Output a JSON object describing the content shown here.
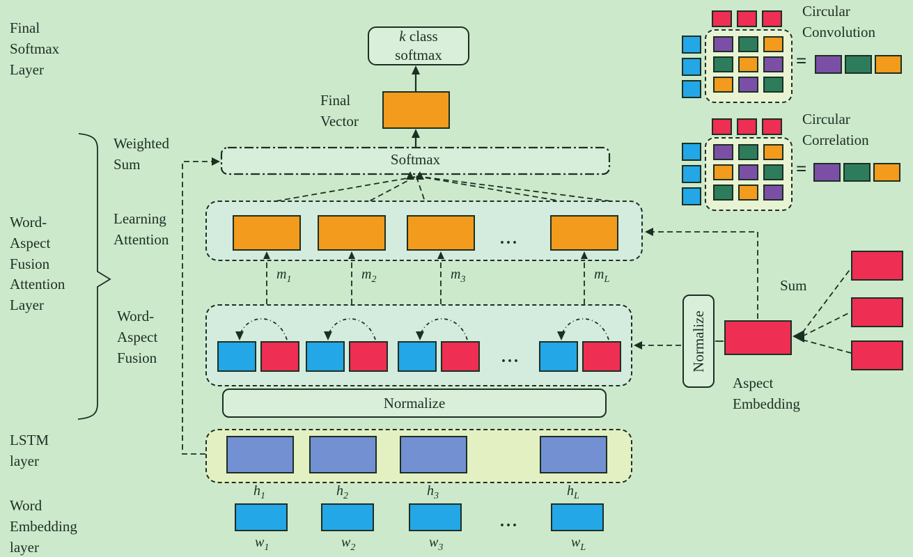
{
  "colors": {
    "background": "#cde9cc",
    "line": "#1c2f22",
    "orange": "#f29b1c",
    "red": "#ee2e52",
    "blue": "#23a7e6",
    "periwinkle": "#7390d2",
    "purple": "#7c4fa7",
    "green": "#2d7d5c",
    "attention_fill": "#d4ecdd",
    "lstm_fill": "#e3f0c2",
    "panel_fill": "#e7f3d2",
    "box_fill": "#d9efda"
  },
  "side_labels": {
    "final_softmax_layer": "Final\nSoftmax\nLayer",
    "word_aspect_fusion_attention_layer": "Word-\nAspect\nFusion\nAttention\nLayer",
    "weighted_sum": "Weighted\nSum",
    "learning_attention": "Learning\nAttention",
    "word_aspect_fusion": "Word-\nAspect\nFusion",
    "lstm_layer": "LSTM\nlayer",
    "word_embedding_layer": "Word\nEmbedding\nlayer"
  },
  "nodes": {
    "k_class": {
      "k": "k",
      "rest": " class",
      "line2": "softmax"
    },
    "final_vector": "Final\nVector",
    "softmax": "Softmax",
    "normalize_horizontal": "Normalize",
    "normalize_vertical": "Normalize",
    "aspect_embedding": "Aspect\nEmbedding",
    "sum": "Sum"
  },
  "seq": {
    "m": [
      {
        "base": "m",
        "sub": "1"
      },
      {
        "base": "m",
        "sub": "2"
      },
      {
        "base": "m",
        "sub": "3"
      },
      {
        "base": "m",
        "sub": "L"
      }
    ],
    "h": [
      {
        "base": "h",
        "sub": "1"
      },
      {
        "base": "h",
        "sub": "2"
      },
      {
        "base": "h",
        "sub": "3"
      },
      {
        "base": "h",
        "sub": "L"
      }
    ],
    "w": [
      {
        "base": "w",
        "sub": "1"
      },
      {
        "base": "w",
        "sub": "2"
      },
      {
        "base": "w",
        "sub": "3"
      },
      {
        "base": "w",
        "sub": "L"
      }
    ]
  },
  "ellipsis": "...",
  "corner": {
    "convolution": {
      "title": "Circular\nConvolution",
      "equals": "=",
      "top_row": [
        "red",
        "red",
        "red"
      ],
      "left_col": [
        "blue",
        "blue",
        "blue"
      ],
      "grid": [
        [
          "purple",
          "green",
          "orange"
        ],
        [
          "green",
          "orange",
          "purple"
        ],
        [
          "orange",
          "purple",
          "green"
        ]
      ],
      "result": [
        "purple",
        "green",
        "orange"
      ]
    },
    "correlation": {
      "title": "Circular\nCorrelation",
      "equals": "=",
      "top_row": [
        "red",
        "red",
        "red"
      ],
      "left_col": [
        "blue",
        "blue",
        "blue"
      ],
      "grid": [
        [
          "purple",
          "green",
          "orange"
        ],
        [
          "orange",
          "purple",
          "green"
        ],
        [
          "green",
          "orange",
          "purple"
        ]
      ],
      "result": [
        "purple",
        "green",
        "orange"
      ]
    }
  }
}
